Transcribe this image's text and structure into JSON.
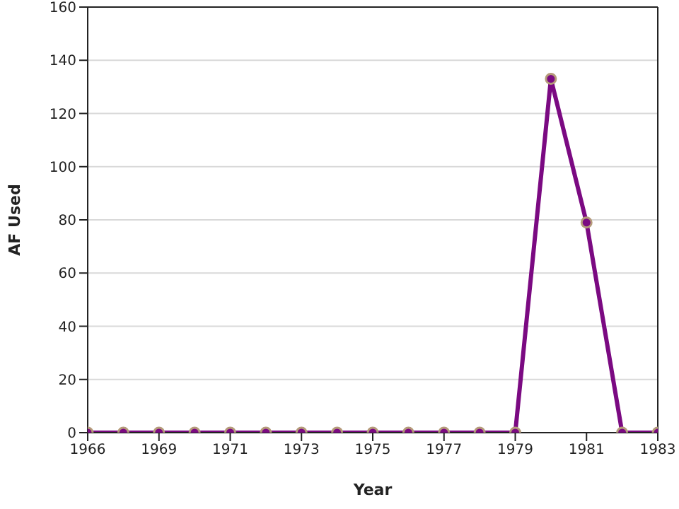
{
  "chart_data": {
    "type": "line",
    "xlabel": "Year",
    "ylabel": "AF Used",
    "categories": [
      "1966",
      null,
      "1969",
      null,
      "1971",
      null,
      "1973",
      null,
      "1975",
      null,
      "1977",
      null,
      "1979",
      null,
      "1981",
      null,
      "1983"
    ],
    "series": [
      {
        "color": "#7b0a82",
        "values": [
          0,
          0,
          0,
          0,
          0,
          0,
          0,
          0,
          0,
          0,
          0,
          0,
          0,
          133,
          79,
          0,
          0
        ]
      }
    ],
    "ylim": [
      0,
      160
    ],
    "yticks": [
      0,
      20,
      40,
      60,
      80,
      100,
      120,
      140,
      160
    ],
    "grid": "y",
    "marker": "circle"
  }
}
